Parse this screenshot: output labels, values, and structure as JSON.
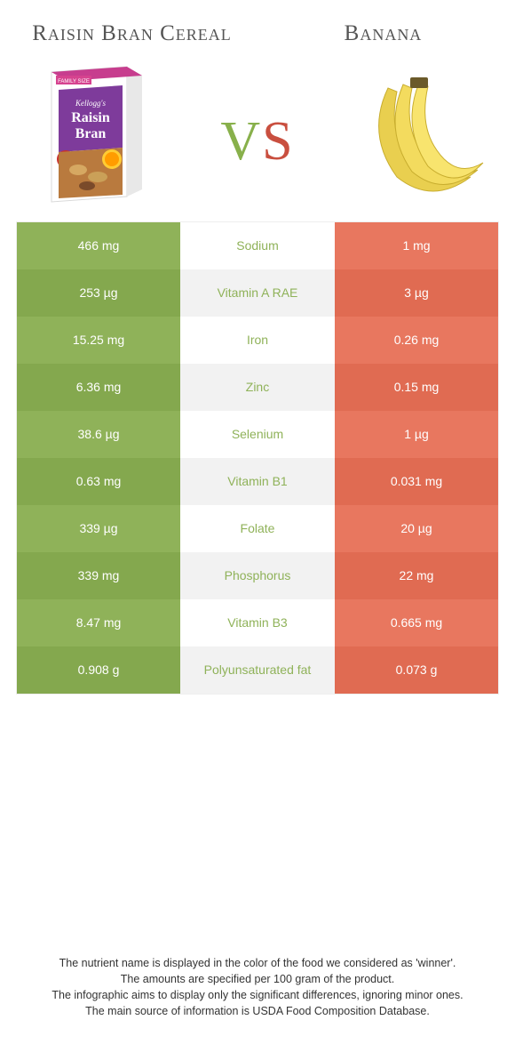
{
  "colors": {
    "left": "#8fb259",
    "left_alt": "#84a84e",
    "right": "#e8775f",
    "right_alt": "#e06b52",
    "mid": "#ffffff",
    "mid_alt": "#f2f2f2",
    "label_left": "#8fb259",
    "label_right": "#e06b52",
    "title": "#555555",
    "vs_v": "#88b04b",
    "vs_s": "#c94f3f"
  },
  "header": {
    "left_title": "Raisin Bran Cereal",
    "right_title": "Banana",
    "vs_v": "v",
    "vs_s": "s"
  },
  "rows": [
    {
      "label": "Sodium",
      "left": "466 mg",
      "right": "1 mg",
      "winner": "left"
    },
    {
      "label": "Vitamin A RAE",
      "left": "253 µg",
      "right": "3 µg",
      "winner": "left"
    },
    {
      "label": "Iron",
      "left": "15.25 mg",
      "right": "0.26 mg",
      "winner": "left"
    },
    {
      "label": "Zinc",
      "left": "6.36 mg",
      "right": "0.15 mg",
      "winner": "left"
    },
    {
      "label": "Selenium",
      "left": "38.6 µg",
      "right": "1 µg",
      "winner": "left"
    },
    {
      "label": "Vitamin B1",
      "left": "0.63 mg",
      "right": "0.031 mg",
      "winner": "left"
    },
    {
      "label": "Folate",
      "left": "339 µg",
      "right": "20 µg",
      "winner": "left"
    },
    {
      "label": "Phosphorus",
      "left": "339 mg",
      "right": "22 mg",
      "winner": "left"
    },
    {
      "label": "Vitamin B3",
      "left": "8.47 mg",
      "right": "0.665 mg",
      "winner": "left"
    },
    {
      "label": "Polyunsaturated fat",
      "left": "0.908 g",
      "right": "0.073 g",
      "winner": "left"
    }
  ],
  "footer": {
    "line1": "The nutrient name is displayed in the color of the food we considered as 'winner'.",
    "line2": "The amounts are specified per 100 gram of the product.",
    "line3": "The infographic aims to display only the significant differences, ignoring minor ones.",
    "line4": "The main source of information is USDA Food Composition Database."
  }
}
